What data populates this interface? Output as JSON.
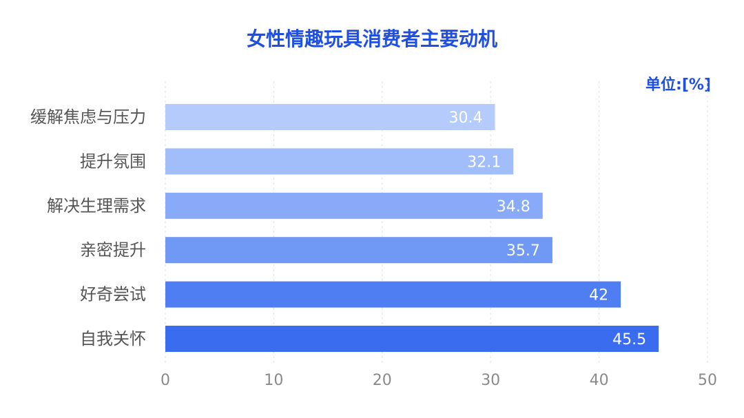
{
  "chart_data": {
    "type": "bar",
    "orientation": "horizontal",
    "title": "女性情趣玩具消费者主要动机",
    "unit_label": "单位:[%]",
    "categories": [
      "缓解焦虑与压力",
      "提升氛围",
      "解决生理需求",
      "亲密提升",
      "好奇尝试",
      "自我关怀"
    ],
    "values": [
      30.4,
      32.1,
      34.8,
      35.7,
      42,
      45.5
    ],
    "value_labels": [
      "30.4",
      "32.1",
      "34.8",
      "35.7",
      "42",
      "45.5"
    ],
    "xlim": [
      0,
      50
    ],
    "xticks": [
      0,
      10,
      20,
      30,
      40,
      50
    ],
    "xtick_labels": [
      "0",
      "10",
      "20",
      "30",
      "40",
      "50"
    ],
    "grid": true,
    "colors": {
      "title": "#1f4fe0",
      "unit": "#1f4fe0",
      "bars": [
        "#b4cbfb",
        "#a1bdfa",
        "#88aaf8",
        "#7099f6",
        "#4e7ef2",
        "#3a6cf0"
      ]
    }
  }
}
